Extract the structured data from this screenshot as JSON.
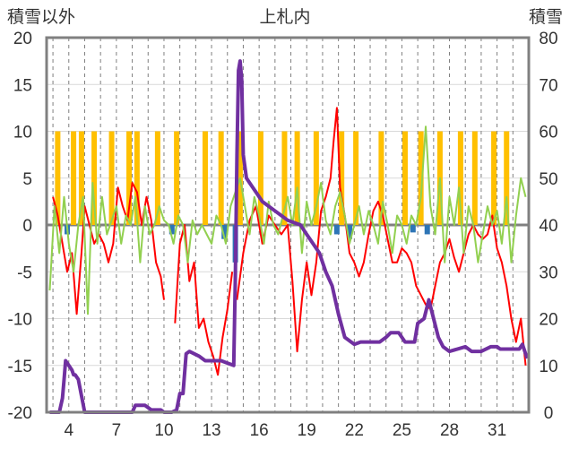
{
  "chart_data": {
    "type": "line",
    "title": "上札内",
    "left_axis_label": "積雪以外",
    "right_axis_label": "積雪",
    "left_ylim": [
      -20,
      20
    ],
    "left_ticks": [
      "20",
      "15",
      "10",
      "5",
      "0",
      "-5",
      "-10",
      "-15",
      "-20"
    ],
    "right_ylim": [
      0,
      80
    ],
    "right_ticks": [
      "80",
      "70",
      "60",
      "50",
      "40",
      "30",
      "20",
      "10",
      "0"
    ],
    "xlim": [
      2.6,
      33.0
    ],
    "x_ticks": [
      "4",
      "7",
      "10",
      "13",
      "16",
      "19",
      "22",
      "25",
      "28",
      "31"
    ],
    "grid": true,
    "colors": {
      "snowfall": "#ffc000",
      "rain": "#2e75b6",
      "temperature": "#ff0000",
      "other": "#92d050",
      "snow_depth": "#7030a0",
      "zero_line": "#808080",
      "frame": "#808080"
    },
    "series": [
      {
        "axis": "left",
        "style": "bar",
        "colorKey": "snowfall",
        "x": [
          3.3,
          4.3,
          4.8,
          5.6,
          6.7,
          7.8,
          8.3,
          9.6,
          10.8,
          12.6,
          13.6,
          14.8,
          16.1,
          17.6,
          18.4,
          19.6,
          21.2,
          22.1,
          23.7,
          25.2,
          26.2,
          27.4,
          28.7,
          29.6,
          30.8,
          31.6
        ],
        "y": [
          10,
          10,
          10,
          10,
          10,
          10,
          10,
          10,
          10,
          10,
          10,
          10,
          10,
          10,
          10,
          10,
          10,
          10,
          10,
          10,
          10,
          10,
          10,
          10,
          10,
          10
        ]
      },
      {
        "axis": "left",
        "style": "bar",
        "colorKey": "rain",
        "x": [
          3.9,
          10.5,
          13.8,
          14.5,
          20.9,
          21.7,
          25.7,
          26.6
        ],
        "y": [
          -1.0,
          -1.0,
          -1.5,
          -4.0,
          -1.0,
          -1.5,
          -0.8,
          -1.0
        ]
      },
      {
        "axis": "left",
        "style": "line",
        "colorKey": "temperature",
        "x": [
          3.0,
          3.3,
          3.6,
          3.9,
          4.2,
          4.5,
          4.8,
          5.0,
          5.3,
          5.6,
          5.9,
          6.2,
          6.5,
          6.8,
          7.1,
          7.4,
          7.7,
          8.0,
          8.3,
          8.6,
          8.9,
          9.2,
          9.5,
          9.8,
          10.0
        ],
        "y": [
          3.0,
          1.0,
          -2.0,
          -5.0,
          -3.0,
          -9.5,
          -3.0,
          2.0,
          0.0,
          -2.0,
          -1.0,
          -2.0,
          -4.0,
          -2.0,
          4.0,
          2.0,
          0.5,
          4.5,
          3.5,
          0.0,
          3.0,
          0.5,
          -4.0,
          -5.5,
          -8.0
        ]
      },
      {
        "axis": "left",
        "style": "line",
        "colorKey": "temperature",
        "x": [
          10.7,
          11.0,
          11.3,
          11.6,
          11.9,
          12.2,
          12.5,
          12.8,
          13.1,
          13.4,
          13.7,
          14.0,
          14.3
        ],
        "y": [
          -10.5,
          -2.0,
          0.0,
          -6.0,
          -4.0,
          -11.0,
          -10.0,
          -12.5,
          -14.0,
          -16.0,
          -12.0,
          -9.0,
          -5.0
        ]
      },
      {
        "axis": "left",
        "style": "line",
        "colorKey": "temperature",
        "x": [
          14.6,
          15.0,
          15.4,
          15.8,
          16.2,
          16.6,
          17.0,
          17.4,
          17.8,
          18.1,
          18.4,
          18.7,
          19.0,
          19.3,
          19.6,
          19.9,
          20.2,
          20.5,
          20.7,
          20.9,
          21.1,
          21.4,
          21.7,
          22.0,
          22.3,
          22.6,
          22.9,
          23.2,
          23.5,
          23.8,
          24.1,
          24.4,
          24.7,
          25.0,
          25.3,
          25.6,
          25.9,
          26.2,
          26.5,
          26.8,
          27.1,
          27.4,
          27.7,
          28.0,
          28.3,
          28.6,
          28.9,
          29.2,
          29.5,
          29.8,
          30.1,
          30.4,
          30.7,
          31.0,
          31.3,
          31.6,
          31.9,
          32.2,
          32.5,
          32.8
        ],
        "y": [
          -8.0,
          -3.0,
          0.5,
          2.0,
          -2.0,
          1.0,
          0.0,
          -1.0,
          0.0,
          -6.0,
          -13.5,
          -8.0,
          -4.0,
          -7.5,
          -4.0,
          1.5,
          3.0,
          5.0,
          9.0,
          12.5,
          4.0,
          1.0,
          -3.0,
          -4.0,
          -5.5,
          -4.0,
          -1.0,
          1.5,
          2.5,
          1.0,
          -1.5,
          -4.0,
          -4.0,
          -2.5,
          -3.0,
          -4.0,
          -6.5,
          -7.5,
          -8.5,
          -9.0,
          -6.5,
          -4.0,
          -3.0,
          -1.5,
          -3.5,
          -5.0,
          -3.0,
          -1.0,
          0.0,
          -1.0,
          -1.5,
          -1.0,
          1.0,
          -2.5,
          -4.0,
          -6.5,
          -10.0,
          -12.5,
          -10.0,
          -15.0
        ]
      },
      {
        "axis": "left",
        "style": "line",
        "colorKey": "other",
        "x": [
          2.8,
          3.1,
          3.4,
          3.7,
          4.0,
          4.3,
          4.6,
          4.9,
          5.2,
          5.5,
          5.8,
          6.1,
          6.4,
          6.7,
          7.0,
          7.3,
          7.6,
          7.9,
          8.2,
          8.5,
          8.8,
          9.1,
          9.4,
          9.7,
          10.0,
          10.3,
          10.6,
          10.9,
          11.2,
          11.5,
          11.8,
          12.1,
          12.4,
          12.7,
          13.0,
          13.3,
          13.6,
          13.9,
          14.2,
          14.5,
          14.8,
          15.1,
          15.4,
          15.7,
          16.0,
          16.3,
          16.6,
          16.9,
          17.2,
          17.5,
          17.8,
          18.1,
          18.4,
          18.7,
          19.0,
          19.3,
          19.6,
          19.9,
          20.2,
          20.5,
          20.8,
          21.1,
          21.4,
          21.7,
          22.0,
          22.3,
          22.6,
          22.9,
          23.2,
          23.5,
          23.8,
          24.1,
          24.4,
          24.7,
          25.0,
          25.3,
          25.6,
          25.9,
          26.2,
          26.5,
          26.8,
          27.1,
          27.4,
          27.7,
          28.0,
          28.3,
          28.6,
          28.9,
          29.2,
          29.5,
          29.8,
          30.1,
          30.4,
          30.7,
          31.0,
          31.3,
          31.6,
          31.9,
          32.2,
          32.5,
          32.8
        ],
        "y": [
          -7.0,
          2.0,
          -3.0,
          3.0,
          -2.0,
          -5.0,
          0.0,
          3.0,
          -9.5,
          4.5,
          -2.0,
          3.0,
          -1.0,
          0.5,
          2.0,
          -2.0,
          1.0,
          0.0,
          3.0,
          -4.0,
          2.0,
          -1.0,
          0.0,
          2.0,
          0.5,
          0.0,
          -2.0,
          1.0,
          0.0,
          -4.0,
          0.5,
          -1.0,
          0.0,
          -1.0,
          -2.0,
          1.0,
          0.0,
          -2.0,
          2.0,
          3.5,
          5.0,
          2.0,
          -1.0,
          3.0,
          1.0,
          -2.0,
          2.5,
          0.0,
          -1.0,
          1.0,
          3.0,
          0.0,
          4.0,
          -3.0,
          2.5,
          0.0,
          2.0,
          4.5,
          0.5,
          -1.0,
          2.0,
          3.5,
          1.0,
          -2.0,
          0.0,
          2.0,
          -1.0,
          1.5,
          0.0,
          -2.0,
          2.5,
          0.0,
          -3.0,
          1.0,
          0.0,
          -2.0,
          1.0,
          0.0,
          3.0,
          10.5,
          2.0,
          -1.0,
          5.0,
          -4.0,
          3.0,
          0.0,
          4.0,
          -3.0,
          2.0,
          0.0,
          -4.0,
          -1.0,
          2.0,
          0.0,
          1.5,
          -2.0,
          3.0,
          -4.0,
          1.0,
          5.0,
          3.0
        ]
      },
      {
        "axis": "right",
        "style": "line",
        "colorKey": "snow_depth",
        "x": [
          2.8,
          3.4,
          3.6,
          3.7,
          3.8,
          4.0,
          4.2,
          4.3,
          4.4,
          4.6,
          5.0,
          8.0,
          8.2,
          8.8,
          9.2,
          9.8,
          10.0,
          10.5,
          10.8,
          11.0,
          11.2,
          11.4,
          11.6,
          12.2,
          12.6,
          13.6,
          14.4,
          14.5,
          14.6,
          14.7,
          14.8,
          14.9,
          15.0,
          15.2,
          15.4,
          15.8,
          16.2,
          16.6,
          17.0,
          17.4,
          17.8,
          18.2,
          18.6,
          19.0,
          19.4,
          19.8,
          20.2,
          20.6,
          21.0,
          21.4,
          21.8,
          22.0,
          22.4,
          23.0,
          23.6,
          24.0,
          24.3,
          24.8,
          25.2,
          25.8,
          26.0,
          26.4,
          26.7,
          27.0,
          27.3,
          27.6,
          28.0,
          29.0,
          29.4,
          30.0,
          30.6,
          31.0,
          31.2,
          31.6,
          32.0,
          32.4,
          32.6,
          32.9
        ],
        "y": [
          0.0,
          0.0,
          3.0,
          7.0,
          11.0,
          10.0,
          9.0,
          8.0,
          8.0,
          7.0,
          0.0,
          0.0,
          1.5,
          1.5,
          0.5,
          0.5,
          0.0,
          0.0,
          0.5,
          4.0,
          4.0,
          12.5,
          13.0,
          12.0,
          11.0,
          11.0,
          10.0,
          29.0,
          55.0,
          73.0,
          75.0,
          71.0,
          55.0,
          50.0,
          49.0,
          47.0,
          45.0,
          44.0,
          43.0,
          42.0,
          41.0,
          40.5,
          40.0,
          38.0,
          36.0,
          34.0,
          30.0,
          27.0,
          21.0,
          16.0,
          15.0,
          14.5,
          15.0,
          15.0,
          15.0,
          16.0,
          17.0,
          17.0,
          15.0,
          15.0,
          19.0,
          20.0,
          24.0,
          20.0,
          16.0,
          14.0,
          13.0,
          14.0,
          13.0,
          13.0,
          14.0,
          14.0,
          13.5,
          13.5,
          13.5,
          13.5,
          14.5,
          11.5
        ]
      }
    ]
  }
}
